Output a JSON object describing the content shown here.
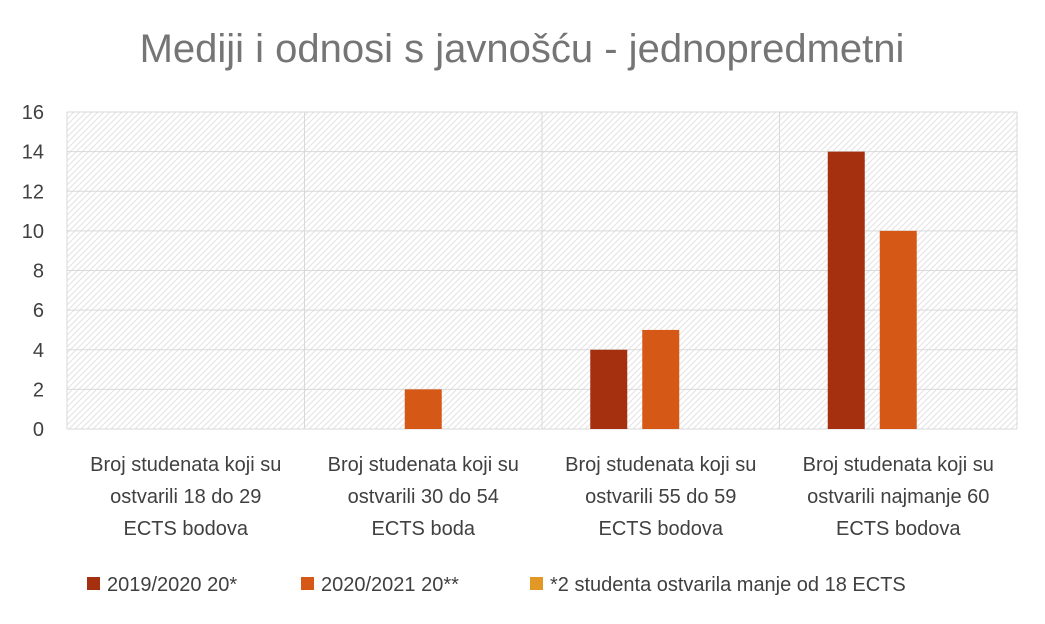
{
  "chart_data": {
    "type": "bar",
    "title": "Mediji i odnosi s javnošću - jednopredmetni",
    "categories": [
      [
        "Broj studenata koji su",
        "ostvarili 18 do 29",
        "ECTS bodova"
      ],
      [
        "Broj studenata koji su",
        "ostvarili 30 do 54",
        "ECTS boda"
      ],
      [
        "Broj studenata koji su",
        "ostvarili 55 do 59",
        "ECTS bodova"
      ],
      [
        "Broj studenata koji su",
        "ostvarili najmanje 60",
        "ECTS bodova"
      ]
    ],
    "series": [
      {
        "name": "2019/2020 20*",
        "color": "#A5300F",
        "values": [
          0,
          0,
          4,
          14
        ]
      },
      {
        "name": "2020/2021 20**",
        "color": "#D55816",
        "values": [
          0,
          2,
          5,
          10
        ]
      },
      {
        "name": "*2 studenta ostvarila manje od 18 ECTS",
        "color": "#E19825",
        "values": [
          0,
          0,
          0,
          0
        ]
      }
    ],
    "ylim": [
      0,
      16
    ],
    "yticks": [
      0,
      2,
      4,
      6,
      8,
      10,
      12,
      14,
      16
    ],
    "grid": true,
    "legend_position": "bottom"
  }
}
